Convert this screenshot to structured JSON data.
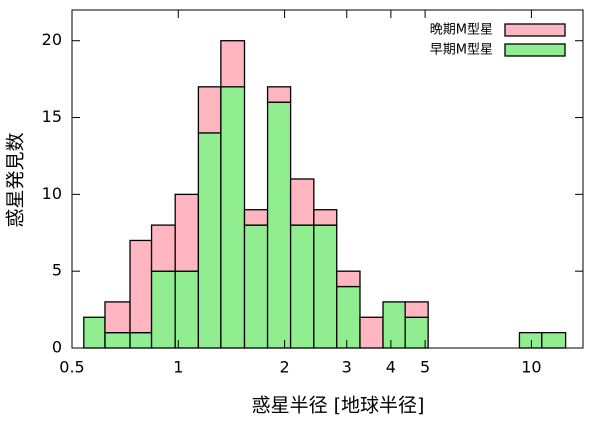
{
  "chart_data": {
    "type": "histogram",
    "xlabel": "惑星半径 [地球半径]",
    "ylabel": "惑星発見数",
    "log_x": true,
    "bins": [
      0.54,
      0.62,
      0.73,
      0.84,
      0.98,
      1.14,
      1.32,
      1.54,
      1.79,
      2.08,
      2.42,
      2.81,
      3.27,
      3.8,
      4.39,
      5.1,
      5.93,
      6.89,
      8.0,
      9.25,
      10.7,
      12.5
    ],
    "series": [
      {
        "name": "晩期M型星",
        "color": "#ffb6c1",
        "values": [
          0,
          2,
          6,
          3,
          5,
          3,
          3,
          1,
          1,
          3,
          1,
          1,
          2,
          0,
          1,
          0,
          0,
          0,
          0,
          0,
          0
        ]
      },
      {
        "name": "早期M型星",
        "color": "#90ee90",
        "values": [
          2,
          1,
          1,
          5,
          5,
          14,
          17,
          8,
          16,
          8,
          8,
          4,
          0,
          3,
          2,
          0,
          0,
          0,
          0,
          1,
          1
        ]
      }
    ],
    "xlim": [
      0.5,
      14
    ],
    "xticks": [
      0.5,
      1,
      2,
      3,
      4,
      5,
      10
    ],
    "ylim": [
      0,
      22
    ],
    "yticks": [
      0,
      5,
      10,
      15,
      20
    ],
    "legend": "upper right"
  }
}
